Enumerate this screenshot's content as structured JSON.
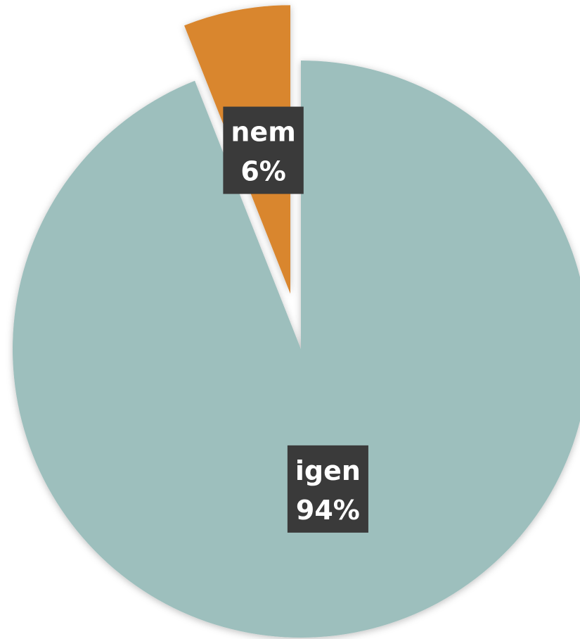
{
  "chart_data": {
    "type": "pie",
    "categories": [
      "nem",
      "igen"
    ],
    "values": [
      6,
      94
    ],
    "value_labels": [
      "6%",
      "94%"
    ],
    "colors": [
      "#d9862f",
      "#9dbfbd"
    ],
    "explode": [
      "nem"
    ]
  }
}
